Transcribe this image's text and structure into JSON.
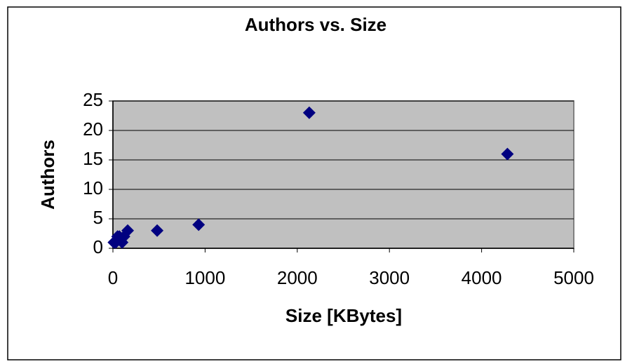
{
  "chart_data": {
    "type": "scatter",
    "title": "Authors vs. Size",
    "x_label": "Size [KBytes]",
    "y_label": "Authors",
    "x": [
      10,
      30,
      50,
      70,
      100,
      120,
      160,
      480,
      930,
      2130,
      4280
    ],
    "values": [
      1,
      1,
      2,
      2,
      1,
      2,
      3,
      3,
      4,
      23,
      16
    ],
    "color": "#000080",
    "xlim": [
      0,
      5000
    ],
    "xticks": [
      0,
      1000,
      2000,
      3000,
      4000,
      5000
    ],
    "ylim": [
      0,
      25
    ],
    "yticks": [
      0,
      5,
      10,
      15,
      20,
      25
    ],
    "grid": true
  }
}
